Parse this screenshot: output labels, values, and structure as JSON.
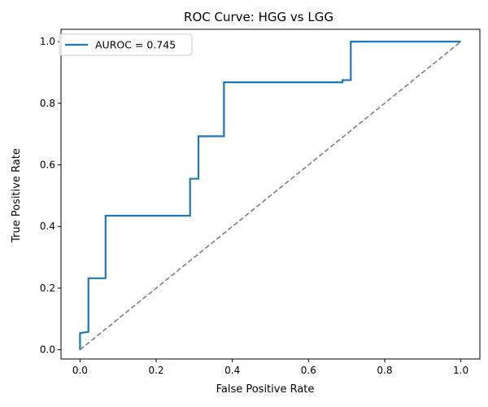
{
  "chart_data": {
    "type": "line",
    "title": "ROC Curve: HGG vs LGG",
    "xlabel": "False Positive Rate",
    "ylabel": "True Positive Rate",
    "xlim": [
      -0.05,
      1.05
    ],
    "ylim": [
      -0.03,
      1.04
    ],
    "xticks": [
      0.0,
      0.2,
      0.4,
      0.6,
      0.8,
      1.0
    ],
    "yticks": [
      0.0,
      0.2,
      0.4,
      0.6,
      0.8,
      1.0
    ],
    "xtick_labels": [
      "0.0",
      "0.2",
      "0.4",
      "0.6",
      "0.8",
      "1.0"
    ],
    "ytick_labels": [
      "0.0",
      "0.2",
      "0.4",
      "0.6",
      "0.8",
      "1.0"
    ],
    "grid": false,
    "legend_position": "top-left",
    "series": [
      {
        "name": "AUROC = 0.745",
        "color": "#1f77b4",
        "style": "solid",
        "x": [
          0.0,
          0.0,
          0.022,
          0.022,
          0.067,
          0.067,
          0.289,
          0.289,
          0.311,
          0.311,
          0.378,
          0.378,
          0.689,
          0.689,
          0.711,
          0.711,
          1.0
        ],
        "y": [
          0.0,
          0.054,
          0.058,
          0.232,
          0.232,
          0.435,
          0.435,
          0.555,
          0.555,
          0.693,
          0.693,
          0.868,
          0.868,
          0.875,
          0.875,
          1.0,
          1.0
        ]
      },
      {
        "name": "",
        "color": "#808080",
        "style": "dashed",
        "x": [
          0.0,
          1.0
        ],
        "y": [
          0.0,
          1.0
        ]
      }
    ]
  }
}
